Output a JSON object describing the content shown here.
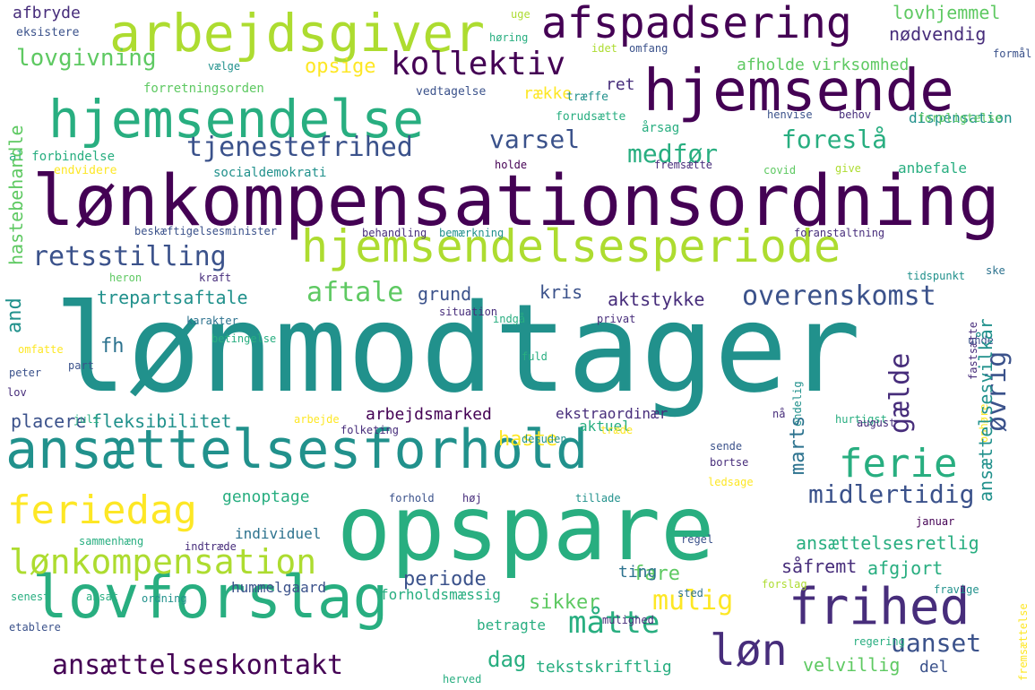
{
  "colors": {
    "background": "#ffffff",
    "palette": [
      "#440154",
      "#472d7b",
      "#3b528b",
      "#2c728e",
      "#21918c",
      "#28ae80",
      "#5ec962",
      "#addc30",
      "#fde725"
    ]
  },
  "words": [
    {
      "text": "lønmodtager"
    },
    {
      "text": "opspare"
    },
    {
      "text": "lønkompensationsordning"
    },
    {
      "text": "ansættelsesforhold"
    },
    {
      "text": "hjemsende"
    },
    {
      "text": "hjemsendelse"
    },
    {
      "text": "arbejdsgiver"
    },
    {
      "text": "lovforslag"
    },
    {
      "text": "hjemsendelsesperiode"
    },
    {
      "text": "afspadsering"
    },
    {
      "text": "frihed"
    },
    {
      "text": "ferie"
    },
    {
      "text": "feriedag"
    },
    {
      "text": "lønkompensation"
    },
    {
      "text": "løn"
    },
    {
      "text": "ansættelseskontakt"
    },
    {
      "text": "kollektiv"
    },
    {
      "text": "lovgivning"
    },
    {
      "text": "tjenestefrihed"
    },
    {
      "text": "retsstilling"
    },
    {
      "text": "overenskomst"
    },
    {
      "text": "midlertidig"
    },
    {
      "text": "aftale"
    },
    {
      "text": "foreslå"
    },
    {
      "text": "måtte"
    },
    {
      "text": "mulig"
    },
    {
      "text": "uanset"
    },
    {
      "text": "varsel"
    },
    {
      "text": "medfør"
    },
    {
      "text": "arbejdsmarked"
    },
    {
      "text": "placere"
    },
    {
      "text": "fleksibilitet"
    },
    {
      "text": "ansættelsesretlig"
    },
    {
      "text": "opsige"
    },
    {
      "text": "lovhjemmel"
    },
    {
      "text": "nødvendig"
    },
    {
      "text": "trepartsaftale"
    },
    {
      "text": "grund"
    },
    {
      "text": "kris"
    },
    {
      "text": "aktstykke"
    },
    {
      "text": "afholde"
    },
    {
      "text": "virksomhed"
    },
    {
      "text": "række"
    },
    {
      "text": "ret"
    },
    {
      "text": "haste"
    },
    {
      "text": "genoptage"
    },
    {
      "text": "periode"
    },
    {
      "text": "fare"
    },
    {
      "text": "såfremt"
    },
    {
      "text": "afgjort"
    },
    {
      "text": "sikker"
    },
    {
      "text": "dag"
    },
    {
      "text": "velvillig"
    },
    {
      "text": "tekstskriftlig"
    },
    {
      "text": "del"
    },
    {
      "text": "hummelgaard"
    },
    {
      "text": "individuel"
    },
    {
      "text": "forholdsmæssig"
    },
    {
      "text": "ting"
    },
    {
      "text": "betragte"
    },
    {
      "text": "ekstraordinær"
    },
    {
      "text": "aktuel"
    },
    {
      "text": "dispensation"
    },
    {
      "text": "anbefale"
    },
    {
      "text": "afbryde"
    },
    {
      "text": "eksistere"
    },
    {
      "text": "forretningsorden"
    },
    {
      "text": "al forbindelse"
    },
    {
      "text": "endvidere"
    },
    {
      "text": "socialdemokrati"
    },
    {
      "text": "beskæftigelsesminister"
    },
    {
      "text": "behandling"
    },
    {
      "text": "bemærkning"
    },
    {
      "text": "foranstaltning"
    },
    {
      "text": "karakter"
    },
    {
      "text": "indgå"
    },
    {
      "text": "situation"
    },
    {
      "text": "privat"
    },
    {
      "text": "tidspunkt"
    },
    {
      "text": "betingelse"
    },
    {
      "text": "heron"
    },
    {
      "text": "kraft"
    },
    {
      "text": "årsag"
    },
    {
      "text": "vedtagelse"
    },
    {
      "text": "træffe"
    },
    {
      "text": "forudsætte"
    },
    {
      "text": "henvise"
    },
    {
      "text": "behov"
    },
    {
      "text": "forpligtelse"
    },
    {
      "text": "holde"
    },
    {
      "text": "fremsætte"
    },
    {
      "text": "covid"
    },
    {
      "text": "give"
    },
    {
      "text": "vælge"
    },
    {
      "text": "uge"
    },
    {
      "text": "høring"
    },
    {
      "text": "idet"
    },
    {
      "text": "omfang"
    },
    {
      "text": "formål"
    },
    {
      "text": "omfatte"
    },
    {
      "text": "part"
    },
    {
      "text": "peter"
    },
    {
      "text": "lov"
    },
    {
      "text": "fh"
    },
    {
      "text": "and"
    },
    {
      "text": "fuld"
    },
    {
      "text": "hurtigst"
    },
    {
      "text": "nå"
    },
    {
      "text": "endelig"
    },
    {
      "text": "august"
    },
    {
      "text": "fastsætte"
    },
    {
      "text": "unde"
    },
    {
      "text": "ske"
    },
    {
      "text": "arbejde"
    },
    {
      "text": "juli"
    },
    {
      "text": "folketing"
    },
    {
      "text": "desuden"
    },
    {
      "text": "træde"
    },
    {
      "text": "bortse"
    },
    {
      "text": "sende"
    },
    {
      "text": "ophøre"
    },
    {
      "text": "forhold"
    },
    {
      "text": "høj"
    },
    {
      "text": "tillade"
    },
    {
      "text": "ledsage"
    },
    {
      "text": "januar"
    },
    {
      "text": "sammenhæng"
    },
    {
      "text": "indtræde"
    },
    {
      "text": "regel"
    },
    {
      "text": "ordning"
    },
    {
      "text": "ansat"
    },
    {
      "text": "senest"
    },
    {
      "text": "etablere"
    },
    {
      "text": "sted"
    },
    {
      "text": "forslag"
    },
    {
      "text": "fravige"
    },
    {
      "text": "mulighed"
    },
    {
      "text": "regering"
    },
    {
      "text": "herved"
    },
    {
      "text": "fremsættelse"
    },
    {
      "text": "hastebehandle"
    },
    {
      "text": "gælde"
    },
    {
      "text": "øvrig"
    },
    {
      "text": "marts"
    },
    {
      "text": "ansættelsesvilkår"
    }
  ]
}
